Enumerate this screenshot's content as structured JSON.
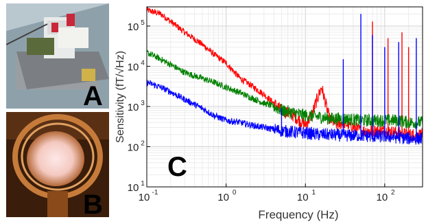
{
  "panels": {
    "a": "A",
    "b": "B",
    "c": "C"
  },
  "chart_data": {
    "type": "line",
    "xlabel": "Frequency (Hz)",
    "ylabel": "Sensitivity (fT/√Hz)",
    "xscale": "log",
    "yscale": "log",
    "xlim": [
      0.1,
      300
    ],
    "ylim": [
      10,
      300000
    ],
    "grid": true,
    "x_ticks": [
      {
        "value": 0.1,
        "label": "10",
        "exp": "-1"
      },
      {
        "value": 1,
        "label": "10",
        "exp": "0"
      },
      {
        "value": 10,
        "label": "10",
        "exp": "1"
      },
      {
        "value": 100,
        "label": "10",
        "exp": "2"
      }
    ],
    "y_ticks": [
      {
        "value": 10,
        "label": "10",
        "exp": "1"
      },
      {
        "value": 100,
        "label": "10",
        "exp": "2"
      },
      {
        "value": 1000,
        "label": "10",
        "exp": "3"
      },
      {
        "value": 10000,
        "label": "10",
        "exp": "4"
      },
      {
        "value": 100000,
        "label": "10",
        "exp": "5"
      }
    ],
    "series": [
      {
        "color": "#ff0000",
        "x": [
          0.1,
          0.15,
          0.2,
          0.3,
          0.5,
          0.7,
          1.0,
          1.5,
          2,
          3,
          4,
          5,
          7,
          10,
          12,
          14,
          16,
          18,
          20,
          25,
          30,
          50,
          70,
          100,
          150,
          200,
          300
        ],
        "y": [
          250000,
          200000,
          130000,
          70000,
          35000,
          20000,
          12000,
          5000,
          3500,
          2000,
          1200,
          800,
          600,
          350,
          600,
          1500,
          3000,
          1200,
          500,
          350,
          400,
          250,
          250,
          250,
          220,
          200,
          200
        ],
        "spikes": [
          {
            "x": 70,
            "y": 130000
          },
          {
            "x": 110,
            "y": 50000
          },
          {
            "x": 165,
            "y": 70000
          },
          {
            "x": 200,
            "y": 30000
          }
        ]
      },
      {
        "color": "#008000",
        "x": [
          0.1,
          0.15,
          0.2,
          0.3,
          0.5,
          0.7,
          1.0,
          1.5,
          2,
          3,
          4,
          5,
          7,
          10,
          15,
          20,
          30,
          50,
          70,
          100,
          150,
          200,
          300
        ],
        "y": [
          22000,
          15000,
          11000,
          7000,
          5000,
          4000,
          3000,
          2200,
          1700,
          1200,
          1000,
          800,
          700,
          600,
          550,
          500,
          500,
          450,
          450,
          450,
          450,
          400,
          400
        ],
        "spikes": []
      },
      {
        "color": "#0000ff",
        "x": [
          0.1,
          0.15,
          0.2,
          0.3,
          0.5,
          0.7,
          1.0,
          1.5,
          2,
          3,
          5,
          7,
          10,
          15,
          20,
          30,
          50,
          70,
          100,
          150,
          200,
          300
        ],
        "y": [
          4000,
          3000,
          2300,
          1500,
          900,
          600,
          450,
          400,
          350,
          300,
          250,
          230,
          220,
          200,
          200,
          190,
          190,
          180,
          180,
          170,
          160,
          160
        ],
        "spikes": [
          {
            "x": 5,
            "y": 900
          },
          {
            "x": 30,
            "y": 15000
          },
          {
            "x": 50,
            "y": 200000
          },
          {
            "x": 70,
            "y": 60000
          },
          {
            "x": 100,
            "y": 30000
          },
          {
            "x": 150,
            "y": 40000
          },
          {
            "x": 250,
            "y": 50000
          }
        ]
      }
    ]
  }
}
